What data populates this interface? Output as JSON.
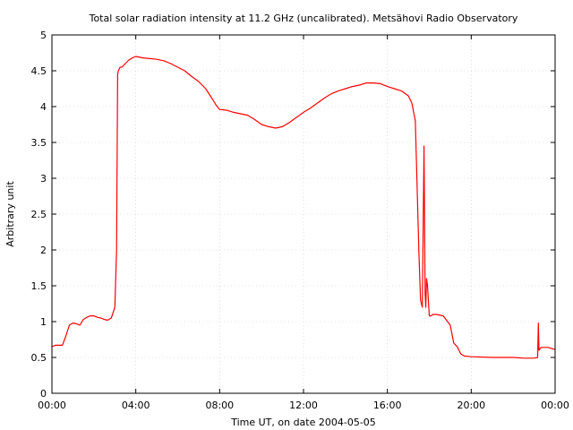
{
  "chart_data": {
    "type": "line",
    "title": "Total solar radiation intensity at 11.2 GHz (uncalibrated). Metsähovi Radio Observatory",
    "xlabel": "Time UT, on date 2004-05-05",
    "ylabel": "Arbitrary unit",
    "xlim": [
      "00:00",
      "24:00"
    ],
    "ylim": [
      0,
      5
    ],
    "grid": true,
    "line_color": "#ff0000",
    "x_tick_labels": [
      "00:00",
      "04:00",
      "08:00",
      "12:00",
      "16:00",
      "20:00",
      "00:00"
    ],
    "y_tick_labels": [
      "0",
      "0.5",
      "1",
      "1.5",
      "2",
      "2.5",
      "3",
      "3.5",
      "4",
      "4.5",
      "5"
    ],
    "series": [
      {
        "x": [
          "00:00",
          "00:10",
          "00:30",
          "00:40",
          "00:50",
          "01:00",
          "01:10",
          "01:20",
          "01:30",
          "01:40",
          "01:50",
          "02:00",
          "02:10",
          "02:20",
          "02:30",
          "02:40",
          "02:50",
          "03:00",
          "03:05",
          "03:08",
          "03:10",
          "03:15",
          "03:20",
          "03:30",
          "03:40",
          "03:50",
          "04:00",
          "04:20",
          "04:40",
          "05:00",
          "05:20",
          "05:40",
          "06:00",
          "06:20",
          "06:40",
          "07:00",
          "07:20",
          "07:40",
          "07:50",
          "08:00",
          "08:20",
          "08:40",
          "09:00",
          "09:20",
          "09:40",
          "10:00",
          "10:20",
          "10:40",
          "11:00",
          "11:20",
          "11:40",
          "12:00",
          "12:20",
          "12:40",
          "13:00",
          "13:20",
          "13:40",
          "14:00",
          "14:20",
          "14:40",
          "15:00",
          "15:20",
          "15:40",
          "16:00",
          "16:20",
          "16:40",
          "17:00",
          "17:10",
          "17:20",
          "17:30",
          "17:35",
          "17:40",
          "17:45",
          "17:48",
          "17:50",
          "17:52",
          "17:55",
          "18:00",
          "18:05",
          "18:10",
          "18:20",
          "18:40",
          "19:00",
          "19:10",
          "19:20",
          "19:30",
          "19:40",
          "20:00",
          "21:00",
          "22:00",
          "22:30",
          "23:00",
          "23:10",
          "23:12",
          "23:14",
          "23:20",
          "23:40",
          "24:00"
        ],
        "y": [
          0.65,
          0.67,
          0.67,
          0.8,
          0.95,
          0.98,
          0.97,
          0.95,
          1.03,
          1.06,
          1.08,
          1.08,
          1.06,
          1.05,
          1.03,
          1.02,
          1.05,
          1.2,
          2.0,
          4.45,
          4.5,
          4.55,
          4.55,
          4.6,
          4.65,
          4.68,
          4.7,
          4.68,
          4.67,
          4.66,
          4.64,
          4.6,
          4.55,
          4.5,
          4.42,
          4.35,
          4.25,
          4.1,
          4.02,
          3.96,
          3.95,
          3.92,
          3.9,
          3.88,
          3.82,
          3.75,
          3.72,
          3.7,
          3.72,
          3.78,
          3.85,
          3.92,
          3.98,
          4.05,
          4.12,
          4.18,
          4.22,
          4.25,
          4.28,
          4.3,
          4.33,
          4.33,
          4.32,
          4.28,
          4.25,
          4.22,
          4.15,
          4.05,
          3.8,
          2.0,
          1.3,
          1.2,
          3.45,
          1.4,
          1.2,
          1.6,
          1.5,
          1.08,
          1.08,
          1.1,
          1.1,
          1.08,
          0.95,
          0.7,
          0.65,
          0.55,
          0.52,
          0.51,
          0.5,
          0.5,
          0.49,
          0.49,
          0.5,
          0.98,
          0.6,
          0.64,
          0.64,
          0.61
        ]
      }
    ]
  }
}
